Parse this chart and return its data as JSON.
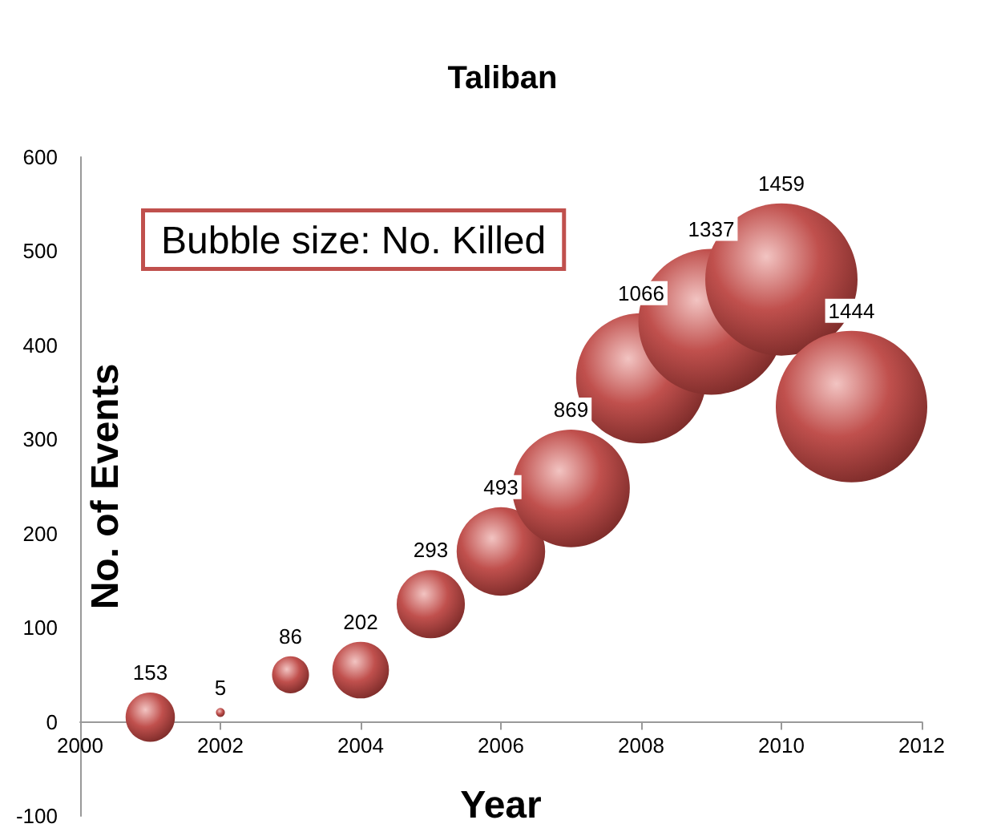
{
  "chart_data": {
    "type": "bubble",
    "title": "Taliban",
    "xlabel": "Year",
    "ylabel": "No. of Events",
    "annotations": [
      "Bubble size: No. Killed"
    ],
    "x": [
      2001,
      2002,
      2003,
      2004,
      2005,
      2006,
      2007,
      2008,
      2009,
      2010,
      2011
    ],
    "series": [
      {
        "color": "#c0504d",
        "values": [
          5,
          10,
          50,
          55,
          125,
          181,
          248,
          365,
          425,
          470,
          335
        ],
        "sizes": [
          153,
          5,
          86,
          202,
          293,
          493,
          869,
          1066,
          1337,
          1459,
          1444
        ],
        "value_labels": [
          "153",
          "5",
          "86",
          "202",
          "293",
          "493",
          "869",
          "1066",
          "1337",
          "1459",
          "1444"
        ]
      }
    ],
    "xlim": [
      2000,
      2012
    ],
    "xticks": [
      2000,
      2002,
      2004,
      2006,
      2008,
      2010,
      2012
    ],
    "ylim": [
      -100,
      600
    ],
    "yticks": [
      -100,
      0,
      100,
      200,
      300,
      400,
      500,
      600
    ],
    "grid": false
  }
}
